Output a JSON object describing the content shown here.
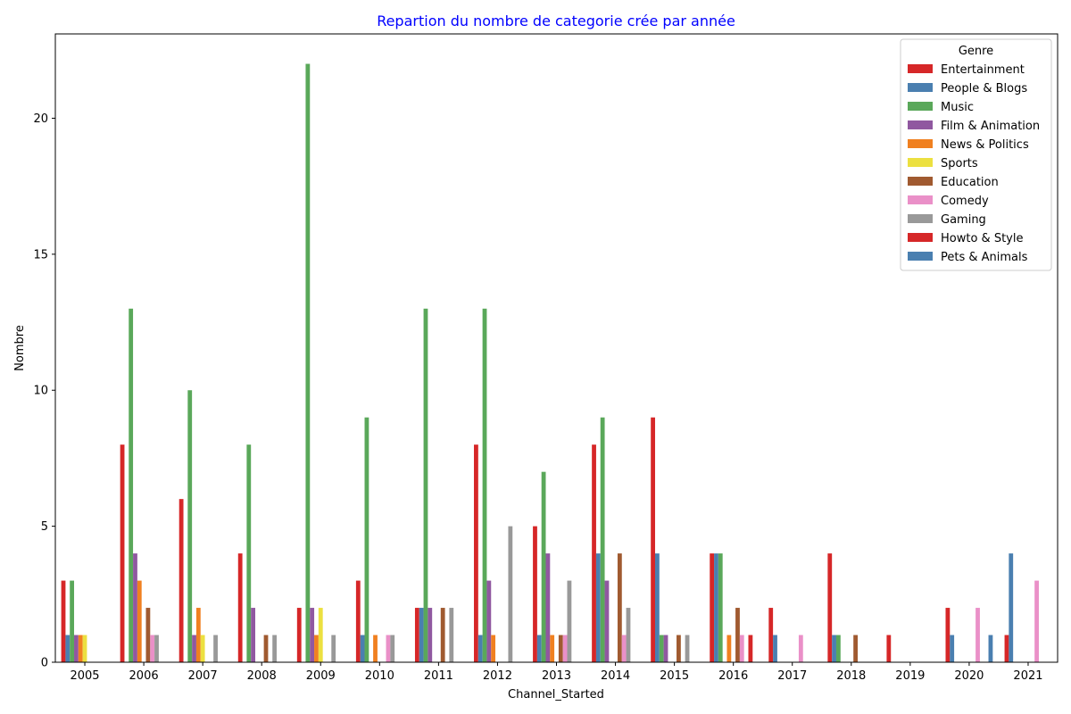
{
  "chart_data": {
    "type": "bar",
    "title": "Repartion du nombre de categorie crée par année",
    "title_color": "#0000ff",
    "xlabel": "Channel_Started",
    "ylabel": "Nombre",
    "ylim": [
      0,
      23.1
    ],
    "yticks": [
      0,
      5,
      10,
      15,
      20
    ],
    "grid": false,
    "legend": {
      "title": "Genre",
      "position": "top-right"
    },
    "categories": [
      "2005",
      "2006",
      "2007",
      "2008",
      "2009",
      "2010",
      "2011",
      "2012",
      "2013",
      "2014",
      "2015",
      "2016",
      "2017",
      "2018",
      "2019",
      "2020",
      "2021"
    ],
    "series": [
      {
        "name": "Entertainment",
        "color": "#d62728",
        "values": [
          3,
          8,
          6,
          4,
          2,
          3,
          2,
          8,
          5,
          8,
          9,
          4,
          2,
          4,
          1,
          2,
          1
        ]
      },
      {
        "name": "People & Blogs",
        "color": "#4a7fb0",
        "values": [
          1,
          0,
          0,
          0,
          0,
          1,
          2,
          1,
          1,
          4,
          4,
          4,
          1,
          1,
          0,
          1,
          4
        ]
      },
      {
        "name": "Music",
        "color": "#5aa85a",
        "values": [
          3,
          13,
          10,
          8,
          22,
          9,
          13,
          13,
          7,
          9,
          1,
          4,
          0,
          1,
          0,
          0,
          0
        ]
      },
      {
        "name": "Film & Animation",
        "color": "#9058a0",
        "values": [
          1,
          4,
          1,
          2,
          2,
          0,
          2,
          3,
          4,
          3,
          1,
          0,
          0,
          0,
          0,
          0,
          0
        ]
      },
      {
        "name": "News & Politics",
        "color": "#f08020",
        "values": [
          1,
          3,
          2,
          0,
          1,
          1,
          0,
          1,
          1,
          0,
          0,
          1,
          0,
          0,
          0,
          0,
          0
        ]
      },
      {
        "name": "Sports",
        "color": "#ece040",
        "values": [
          1,
          0,
          1,
          0,
          2,
          0,
          0,
          0,
          0,
          0,
          0,
          0,
          0,
          0,
          0,
          0,
          0
        ]
      },
      {
        "name": "Education",
        "color": "#a05a30",
        "values": [
          0,
          2,
          0,
          1,
          0,
          0,
          2,
          0,
          1,
          4,
          1,
          2,
          0,
          1,
          0,
          0,
          0
        ]
      },
      {
        "name": "Comedy",
        "color": "#ea90c8",
        "values": [
          0,
          1,
          0,
          0,
          0,
          1,
          0,
          0,
          1,
          1,
          0,
          1,
          1,
          0,
          0,
          2,
          3
        ]
      },
      {
        "name": "Gaming",
        "color": "#999999",
        "values": [
          0,
          1,
          1,
          1,
          1,
          1,
          2,
          5,
          3,
          2,
          1,
          0,
          0,
          0,
          0,
          0,
          0
        ]
      },
      {
        "name": "Howto & Style",
        "color": "#d62728",
        "values": [
          0,
          0,
          0,
          0,
          0,
          0,
          0,
          0,
          0,
          0,
          0,
          1,
          0,
          0,
          0,
          0,
          0
        ]
      },
      {
        "name": "Pets & Animals",
        "color": "#4a7fb0",
        "values": [
          0,
          0,
          0,
          0,
          0,
          0,
          0,
          0,
          0,
          0,
          0,
          0,
          0,
          0,
          0,
          1,
          0
        ]
      }
    ]
  }
}
